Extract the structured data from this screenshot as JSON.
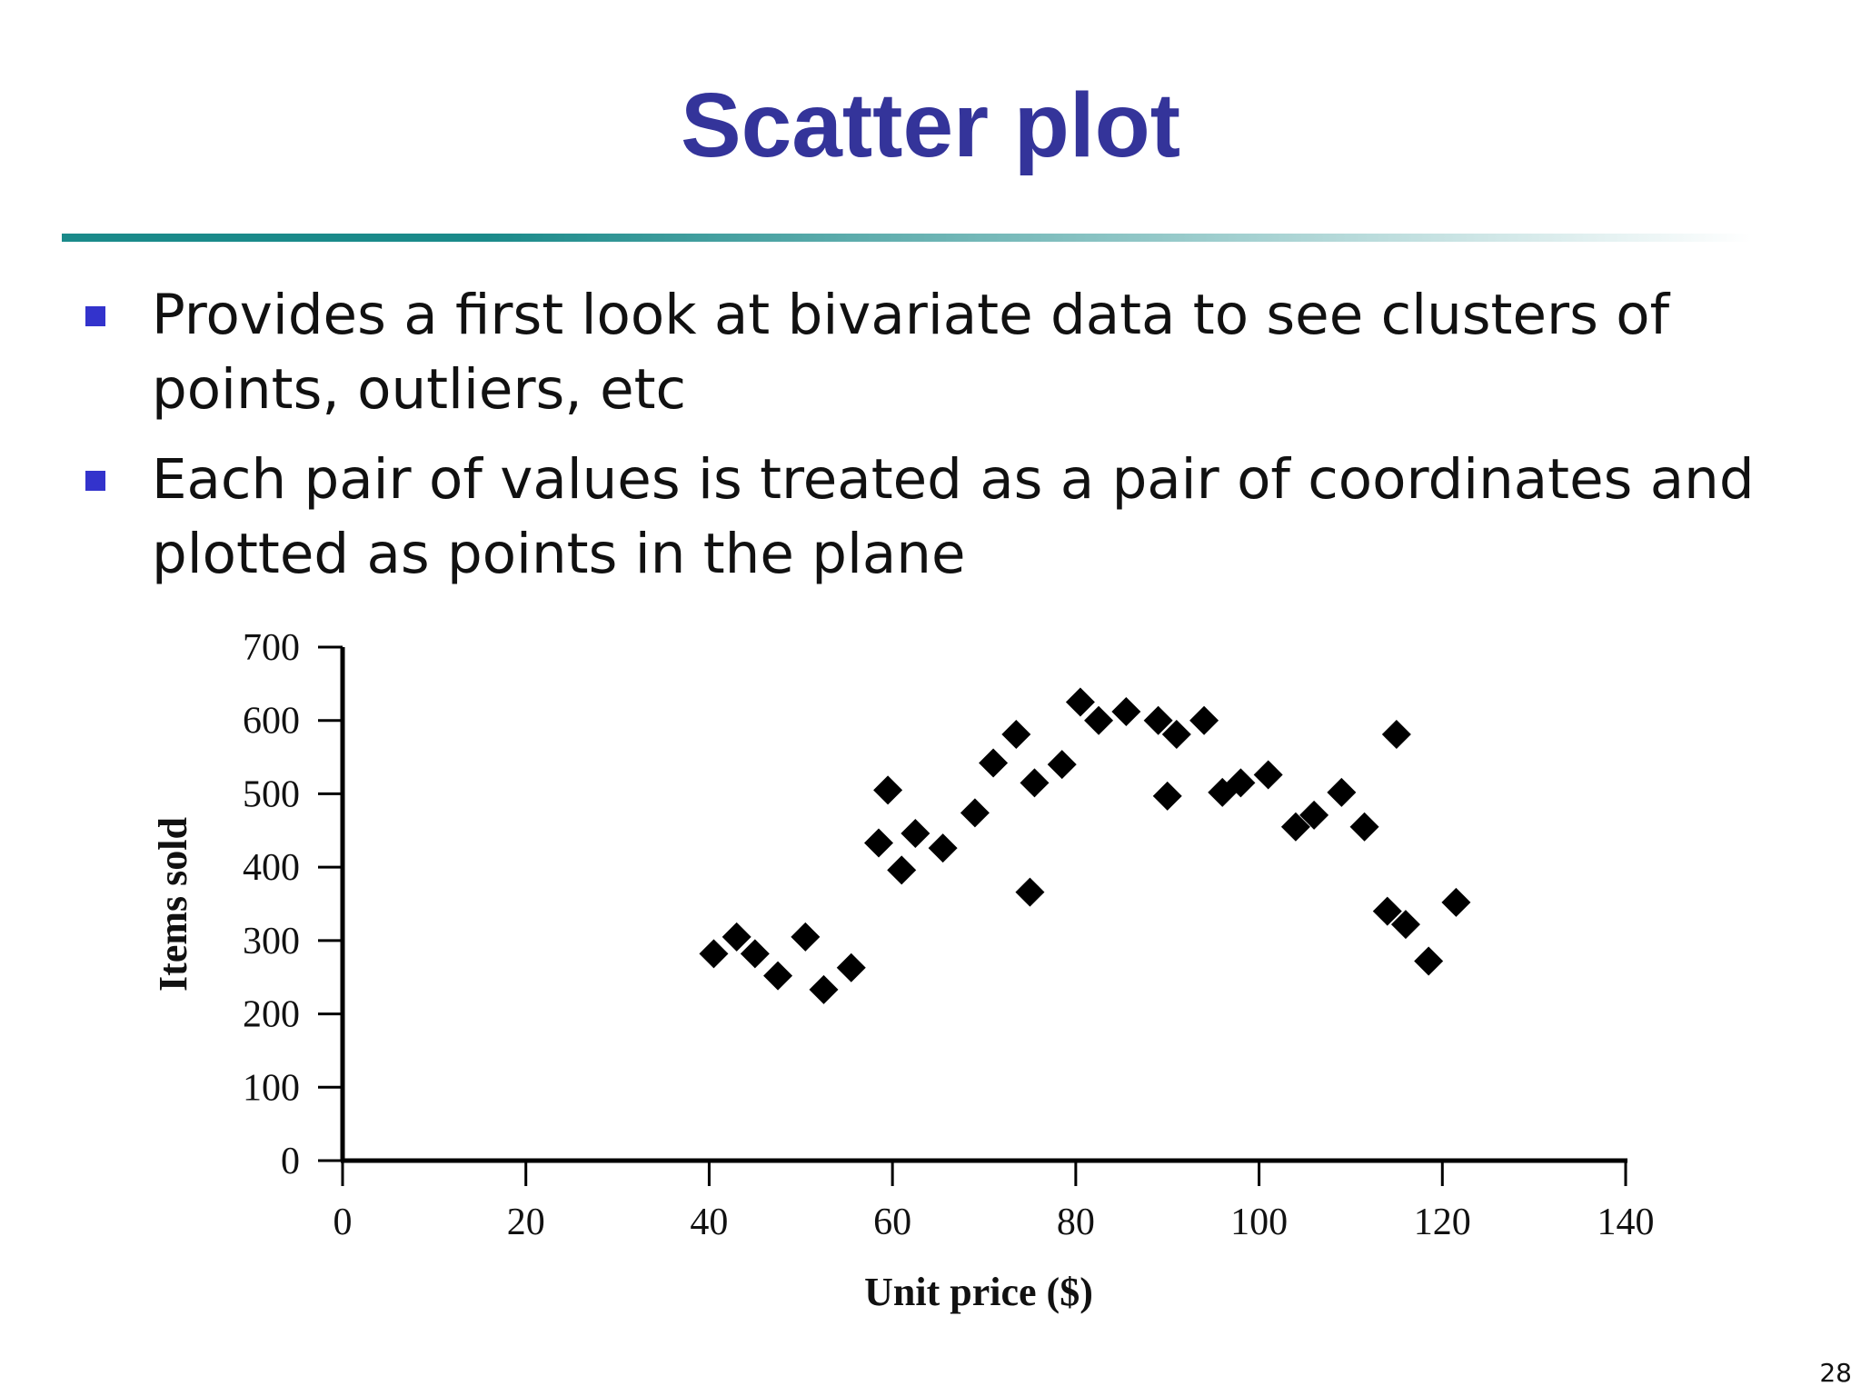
{
  "slide": {
    "title": "Scatter plot",
    "page_number": "28",
    "colors": {
      "title": "#34349a",
      "bullet": "#3333cc",
      "rule_start": "#1a8a8a",
      "rule_end": "#ffffff"
    },
    "bullets": [
      {
        "line1": "Provides a first look at bivariate data to see clusters of",
        "line2": "points, outliers, etc"
      },
      {
        "line1": "Each pair of values is treated as a pair of coordinates and",
        "line2": "plotted as points in the plane"
      }
    ]
  },
  "chart_data": {
    "type": "scatter",
    "xlabel": "Unit price ($)",
    "ylabel": "Items sold",
    "xlim": [
      0,
      140
    ],
    "ylim": [
      0,
      700
    ],
    "xticks": [
      0,
      20,
      40,
      60,
      80,
      100,
      120,
      140
    ],
    "yticks": [
      0,
      100,
      200,
      300,
      400,
      500,
      600,
      700
    ],
    "grid": false,
    "marker": "diamond",
    "marker_color": "#000000",
    "points": [
      [
        40.5,
        282
      ],
      [
        43,
        305
      ],
      [
        45,
        282
      ],
      [
        47.5,
        252
      ],
      [
        50.5,
        305
      ],
      [
        52.5,
        233
      ],
      [
        55.5,
        263
      ],
      [
        58.5,
        433
      ],
      [
        59.5,
        505
      ],
      [
        61,
        396
      ],
      [
        62.5,
        446
      ],
      [
        65.5,
        426
      ],
      [
        69,
        474
      ],
      [
        71,
        542
      ],
      [
        73.5,
        581
      ],
      [
        75,
        366
      ],
      [
        75.5,
        515
      ],
      [
        78.5,
        540
      ],
      [
        80.5,
        625
      ],
      [
        82.5,
        600
      ],
      [
        85.5,
        612
      ],
      [
        89,
        600
      ],
      [
        90,
        497
      ],
      [
        91,
        581
      ],
      [
        94,
        600
      ],
      [
        96,
        502
      ],
      [
        98,
        515
      ],
      [
        101,
        526
      ],
      [
        104,
        455
      ],
      [
        106,
        471
      ],
      [
        109,
        502
      ],
      [
        111.5,
        455
      ],
      [
        114,
        340
      ],
      [
        115,
        581
      ],
      [
        116,
        322
      ],
      [
        118.5,
        272
      ],
      [
        121.5,
        352
      ]
    ]
  }
}
